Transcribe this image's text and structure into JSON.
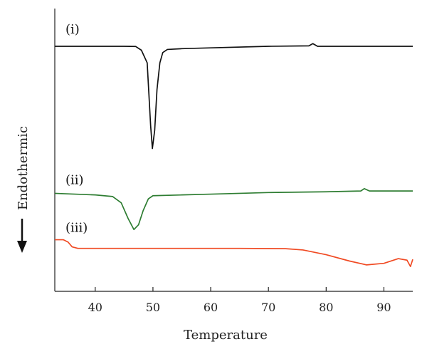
{
  "chart_data": {
    "type": "line",
    "title": "",
    "xlabel": "Temperature",
    "ylabel": "Endothermic",
    "xlim": [
      33,
      95
    ],
    "x_ticks": [
      40,
      50,
      60,
      70,
      80,
      90
    ],
    "grid": false,
    "legend": "none",
    "series": [
      {
        "label": "(i)",
        "color": "#111111",
        "points": [
          [
            33,
            0.45
          ],
          [
            40,
            0.45
          ],
          [
            45,
            0.45
          ],
          [
            47,
            0.44
          ],
          [
            48,
            0.2
          ],
          [
            49,
            -0.6
          ],
          [
            49.6,
            -4.6
          ],
          [
            49.9,
            -6.05
          ],
          [
            50.3,
            -4.9
          ],
          [
            50.7,
            -2.3
          ],
          [
            51.2,
            -0.6
          ],
          [
            51.7,
            0.05
          ],
          [
            52.5,
            0.25
          ],
          [
            55,
            0.3
          ],
          [
            60,
            0.35
          ],
          [
            70,
            0.45
          ],
          [
            77,
            0.48
          ],
          [
            77.7,
            0.62
          ],
          [
            78.5,
            0.45
          ],
          [
            85,
            0.45
          ],
          [
            95,
            0.45
          ]
        ]
      },
      {
        "label": "(ii)",
        "color": "#2e7d32",
        "points": [
          [
            33,
            -8.9
          ],
          [
            40,
            -9.0
          ],
          [
            43,
            -9.1
          ],
          [
            44.5,
            -9.5
          ],
          [
            45.7,
            -10.5
          ],
          [
            46.7,
            -11.2
          ],
          [
            47.5,
            -10.9
          ],
          [
            48.3,
            -10.0
          ],
          [
            49.2,
            -9.25
          ],
          [
            50,
            -9.05
          ],
          [
            55,
            -9.0
          ],
          [
            60,
            -8.95
          ],
          [
            70,
            -8.85
          ],
          [
            80,
            -8.8
          ],
          [
            86,
            -8.75
          ],
          [
            86.6,
            -8.6
          ],
          [
            87.5,
            -8.75
          ],
          [
            95,
            -8.75
          ]
        ]
      },
      {
        "label": "(iii)",
        "color": "#f04a23",
        "points": [
          [
            33,
            -11.85
          ],
          [
            34.5,
            -11.85
          ],
          [
            35.3,
            -12.0
          ],
          [
            36,
            -12.3
          ],
          [
            37,
            -12.4
          ],
          [
            45,
            -12.4
          ],
          [
            55,
            -12.4
          ],
          [
            65,
            -12.4
          ],
          [
            73,
            -12.42
          ],
          [
            76,
            -12.5
          ],
          [
            80,
            -12.8
          ],
          [
            84,
            -13.2
          ],
          [
            87,
            -13.45
          ],
          [
            90,
            -13.35
          ],
          [
            92.5,
            -13.05
          ],
          [
            94,
            -13.15
          ],
          [
            94.6,
            -13.55
          ],
          [
            95,
            -13.1
          ]
        ]
      }
    ]
  }
}
